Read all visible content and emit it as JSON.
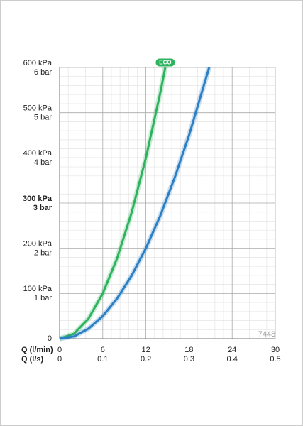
{
  "chart_data": {
    "type": "line",
    "xlim": [
      0,
      30
    ],
    "xticks": [
      0,
      6,
      12,
      18,
      24,
      30
    ],
    "xlabel": "Q (l/min)",
    "x2lim": [
      0,
      0.5
    ],
    "x2ticks": [
      0,
      0.1,
      0.2,
      0.3,
      0.4,
      0.5
    ],
    "x2label": "Q (l/s)",
    "ylim": [
      0,
      600
    ],
    "yticks": [
      0,
      {
        "value": 100,
        "label": "100 kPa"
      },
      {
        "value": 200,
        "label": "200 kPa"
      },
      {
        "value": 300,
        "label": "300 kPa"
      },
      {
        "value": 400,
        "label": "400 kPa"
      },
      {
        "value": 500,
        "label": "500 kPa"
      },
      {
        "value": 600,
        "label": "600 kPa"
      }
    ],
    "y2lim": [
      0,
      6
    ],
    "y2ticks": [
      {
        "value": 1,
        "label": "1 bar"
      },
      {
        "value": 2,
        "label": "2 bar"
      },
      {
        "value": 3,
        "label": "3 bar"
      },
      {
        "value": 4,
        "label": "4 bar"
      },
      {
        "value": 5,
        "label": "5 bar"
      },
      {
        "value": 6,
        "label": "6 bar"
      }
    ],
    "highlight_y": 300,
    "grid": true,
    "minor_divisions": 5,
    "series": [
      {
        "name": "ECO",
        "color": "#2db35d",
        "x": [
          0,
          2,
          4,
          6,
          8,
          10,
          12,
          14,
          14.7
        ],
        "values": [
          0,
          11,
          44,
          100,
          178,
          278,
          400,
          544,
          600
        ]
      },
      {
        "color": "#2b7fc4",
        "x": [
          0,
          2,
          4,
          6,
          8,
          10,
          12,
          14,
          16,
          18,
          20.8
        ],
        "values": [
          0,
          5,
          22,
          50,
          89,
          139,
          200,
          272,
          356,
          450,
          600
        ]
      }
    ],
    "annotation": "7448"
  }
}
